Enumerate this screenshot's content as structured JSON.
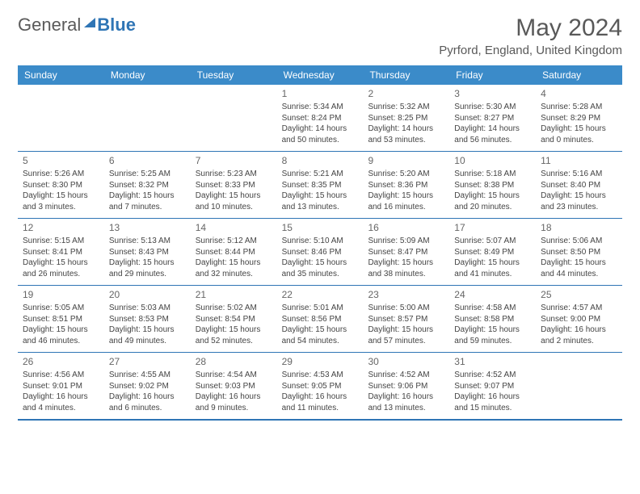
{
  "logo": {
    "part1": "General",
    "part2": "Blue"
  },
  "title": "May 2024",
  "location": "Pyrford, England, United Kingdom",
  "colors": {
    "header_bg": "#3b8bc9",
    "header_text": "#ffffff",
    "border": "#2f75b5",
    "text": "#444444",
    "title_text": "#595959"
  },
  "day_headers": [
    "Sunday",
    "Monday",
    "Tuesday",
    "Wednesday",
    "Thursday",
    "Friday",
    "Saturday"
  ],
  "weeks": [
    [
      {
        "n": "",
        "sr": "",
        "ss": "",
        "dl": ""
      },
      {
        "n": "",
        "sr": "",
        "ss": "",
        "dl": ""
      },
      {
        "n": "",
        "sr": "",
        "ss": "",
        "dl": ""
      },
      {
        "n": "1",
        "sr": "Sunrise: 5:34 AM",
        "ss": "Sunset: 8:24 PM",
        "dl": "Daylight: 14 hours and 50 minutes."
      },
      {
        "n": "2",
        "sr": "Sunrise: 5:32 AM",
        "ss": "Sunset: 8:25 PM",
        "dl": "Daylight: 14 hours and 53 minutes."
      },
      {
        "n": "3",
        "sr": "Sunrise: 5:30 AM",
        "ss": "Sunset: 8:27 PM",
        "dl": "Daylight: 14 hours and 56 minutes."
      },
      {
        "n": "4",
        "sr": "Sunrise: 5:28 AM",
        "ss": "Sunset: 8:29 PM",
        "dl": "Daylight: 15 hours and 0 minutes."
      }
    ],
    [
      {
        "n": "5",
        "sr": "Sunrise: 5:26 AM",
        "ss": "Sunset: 8:30 PM",
        "dl": "Daylight: 15 hours and 3 minutes."
      },
      {
        "n": "6",
        "sr": "Sunrise: 5:25 AM",
        "ss": "Sunset: 8:32 PM",
        "dl": "Daylight: 15 hours and 7 minutes."
      },
      {
        "n": "7",
        "sr": "Sunrise: 5:23 AM",
        "ss": "Sunset: 8:33 PM",
        "dl": "Daylight: 15 hours and 10 minutes."
      },
      {
        "n": "8",
        "sr": "Sunrise: 5:21 AM",
        "ss": "Sunset: 8:35 PM",
        "dl": "Daylight: 15 hours and 13 minutes."
      },
      {
        "n": "9",
        "sr": "Sunrise: 5:20 AM",
        "ss": "Sunset: 8:36 PM",
        "dl": "Daylight: 15 hours and 16 minutes."
      },
      {
        "n": "10",
        "sr": "Sunrise: 5:18 AM",
        "ss": "Sunset: 8:38 PM",
        "dl": "Daylight: 15 hours and 20 minutes."
      },
      {
        "n": "11",
        "sr": "Sunrise: 5:16 AM",
        "ss": "Sunset: 8:40 PM",
        "dl": "Daylight: 15 hours and 23 minutes."
      }
    ],
    [
      {
        "n": "12",
        "sr": "Sunrise: 5:15 AM",
        "ss": "Sunset: 8:41 PM",
        "dl": "Daylight: 15 hours and 26 minutes."
      },
      {
        "n": "13",
        "sr": "Sunrise: 5:13 AM",
        "ss": "Sunset: 8:43 PM",
        "dl": "Daylight: 15 hours and 29 minutes."
      },
      {
        "n": "14",
        "sr": "Sunrise: 5:12 AM",
        "ss": "Sunset: 8:44 PM",
        "dl": "Daylight: 15 hours and 32 minutes."
      },
      {
        "n": "15",
        "sr": "Sunrise: 5:10 AM",
        "ss": "Sunset: 8:46 PM",
        "dl": "Daylight: 15 hours and 35 minutes."
      },
      {
        "n": "16",
        "sr": "Sunrise: 5:09 AM",
        "ss": "Sunset: 8:47 PM",
        "dl": "Daylight: 15 hours and 38 minutes."
      },
      {
        "n": "17",
        "sr": "Sunrise: 5:07 AM",
        "ss": "Sunset: 8:49 PM",
        "dl": "Daylight: 15 hours and 41 minutes."
      },
      {
        "n": "18",
        "sr": "Sunrise: 5:06 AM",
        "ss": "Sunset: 8:50 PM",
        "dl": "Daylight: 15 hours and 44 minutes."
      }
    ],
    [
      {
        "n": "19",
        "sr": "Sunrise: 5:05 AM",
        "ss": "Sunset: 8:51 PM",
        "dl": "Daylight: 15 hours and 46 minutes."
      },
      {
        "n": "20",
        "sr": "Sunrise: 5:03 AM",
        "ss": "Sunset: 8:53 PM",
        "dl": "Daylight: 15 hours and 49 minutes."
      },
      {
        "n": "21",
        "sr": "Sunrise: 5:02 AM",
        "ss": "Sunset: 8:54 PM",
        "dl": "Daylight: 15 hours and 52 minutes."
      },
      {
        "n": "22",
        "sr": "Sunrise: 5:01 AM",
        "ss": "Sunset: 8:56 PM",
        "dl": "Daylight: 15 hours and 54 minutes."
      },
      {
        "n": "23",
        "sr": "Sunrise: 5:00 AM",
        "ss": "Sunset: 8:57 PM",
        "dl": "Daylight: 15 hours and 57 minutes."
      },
      {
        "n": "24",
        "sr": "Sunrise: 4:58 AM",
        "ss": "Sunset: 8:58 PM",
        "dl": "Daylight: 15 hours and 59 minutes."
      },
      {
        "n": "25",
        "sr": "Sunrise: 4:57 AM",
        "ss": "Sunset: 9:00 PM",
        "dl": "Daylight: 16 hours and 2 minutes."
      }
    ],
    [
      {
        "n": "26",
        "sr": "Sunrise: 4:56 AM",
        "ss": "Sunset: 9:01 PM",
        "dl": "Daylight: 16 hours and 4 minutes."
      },
      {
        "n": "27",
        "sr": "Sunrise: 4:55 AM",
        "ss": "Sunset: 9:02 PM",
        "dl": "Daylight: 16 hours and 6 minutes."
      },
      {
        "n": "28",
        "sr": "Sunrise: 4:54 AM",
        "ss": "Sunset: 9:03 PM",
        "dl": "Daylight: 16 hours and 9 minutes."
      },
      {
        "n": "29",
        "sr": "Sunrise: 4:53 AM",
        "ss": "Sunset: 9:05 PM",
        "dl": "Daylight: 16 hours and 11 minutes."
      },
      {
        "n": "30",
        "sr": "Sunrise: 4:52 AM",
        "ss": "Sunset: 9:06 PM",
        "dl": "Daylight: 16 hours and 13 minutes."
      },
      {
        "n": "31",
        "sr": "Sunrise: 4:52 AM",
        "ss": "Sunset: 9:07 PM",
        "dl": "Daylight: 16 hours and 15 minutes."
      },
      {
        "n": "",
        "sr": "",
        "ss": "",
        "dl": ""
      }
    ]
  ]
}
